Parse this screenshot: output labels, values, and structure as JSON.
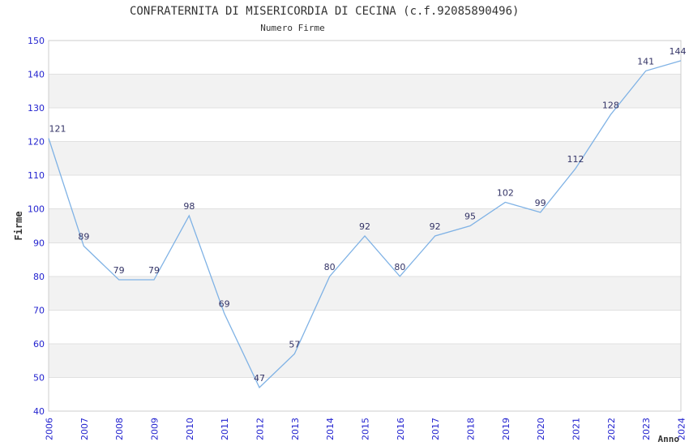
{
  "header": {
    "title": "CONFRATERNITA DI MISERICORDIA DI CECINA (c.f.92085890496)",
    "subtitle": "Numero Firme"
  },
  "chart_data": {
    "type": "line",
    "title": "CONFRATERNITA DI MISERICORDIA DI CECINA (c.f.92085890496)",
    "subtitle": "Numero Firme",
    "xlabel": "Anno",
    "ylabel": "Firme",
    "x": [
      "2006",
      "2007",
      "2008",
      "2009",
      "2010",
      "2011",
      "2012",
      "2013",
      "2014",
      "2015",
      "2016",
      "2017",
      "2018",
      "2019",
      "2020",
      "2021",
      "2022",
      "2023",
      "2024"
    ],
    "values": [
      121,
      89,
      79,
      79,
      98,
      69,
      47,
      57,
      80,
      92,
      80,
      92,
      95,
      102,
      99,
      112,
      128,
      141,
      144
    ],
    "ylim": [
      40,
      150
    ],
    "ytick_step": 10,
    "yticks": [
      40,
      50,
      60,
      70,
      80,
      90,
      100,
      110,
      120,
      130,
      140,
      150
    ],
    "grid": "horizontal-alternating-bands",
    "legend": "none",
    "data_labels": true,
    "colors": {
      "line": "#7fb2e5",
      "tick_label": "#2323cf",
      "data_label": "#333366",
      "band": "#f2f2f2",
      "gridline": "#e0e0e0",
      "border": "#cccccc",
      "title": "#333333"
    }
  }
}
